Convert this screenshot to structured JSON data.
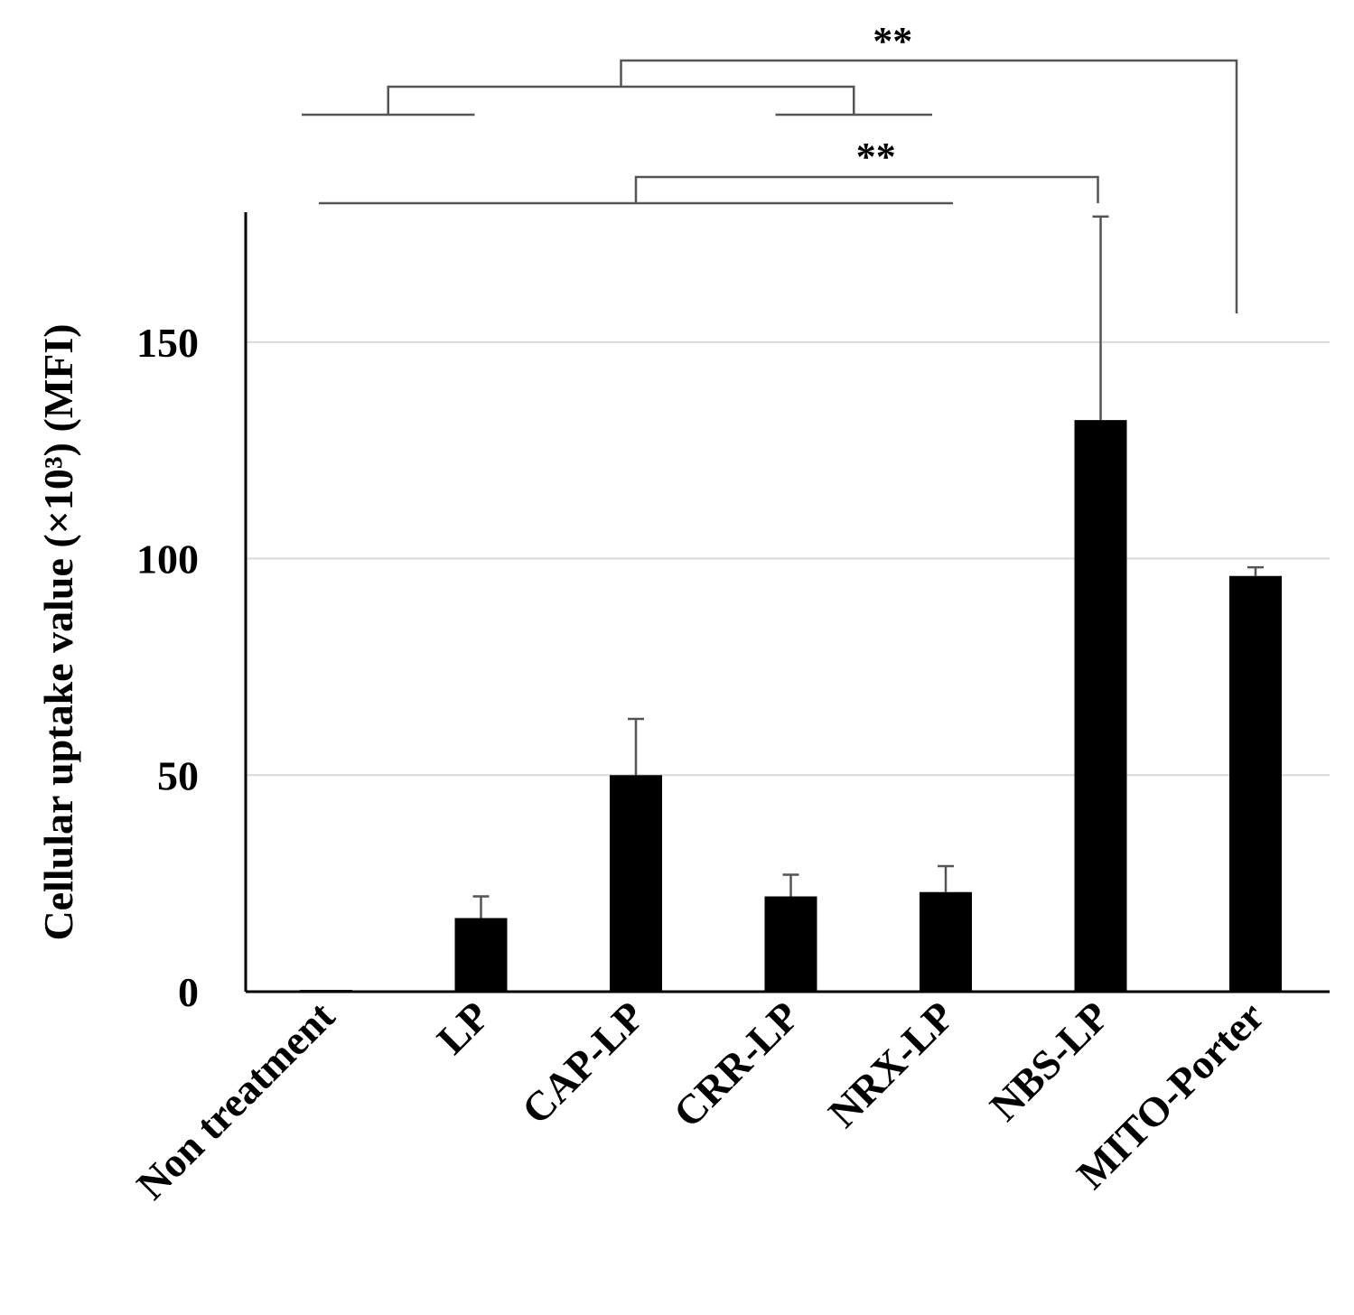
{
  "chart_data": {
    "type": "bar",
    "categories": [
      "Non treatment",
      "LP",
      "CAP-LP",
      "CRR-LP",
      "NRX-LP",
      "NBS-LP",
      "MITO-Porter"
    ],
    "values": [
      0.4,
      17,
      50,
      22,
      23,
      132,
      96
    ],
    "errors": [
      0,
      5,
      13,
      5,
      6,
      47,
      2
    ],
    "ylim": [
      0,
      180
    ],
    "yticks": [
      0,
      50,
      100,
      150
    ],
    "ylabel": "Cellular uptake value (×10³) (MFI)",
    "xlabel": "",
    "title": "",
    "grid": true,
    "bar_color": "#000000",
    "significance": [
      {
        "label": "**",
        "group": [
          0,
          1,
          3,
          4
        ],
        "target": 6
      },
      {
        "label": "**",
        "group": [
          0,
          1,
          2,
          3,
          4
        ],
        "target": 5
      }
    ]
  }
}
